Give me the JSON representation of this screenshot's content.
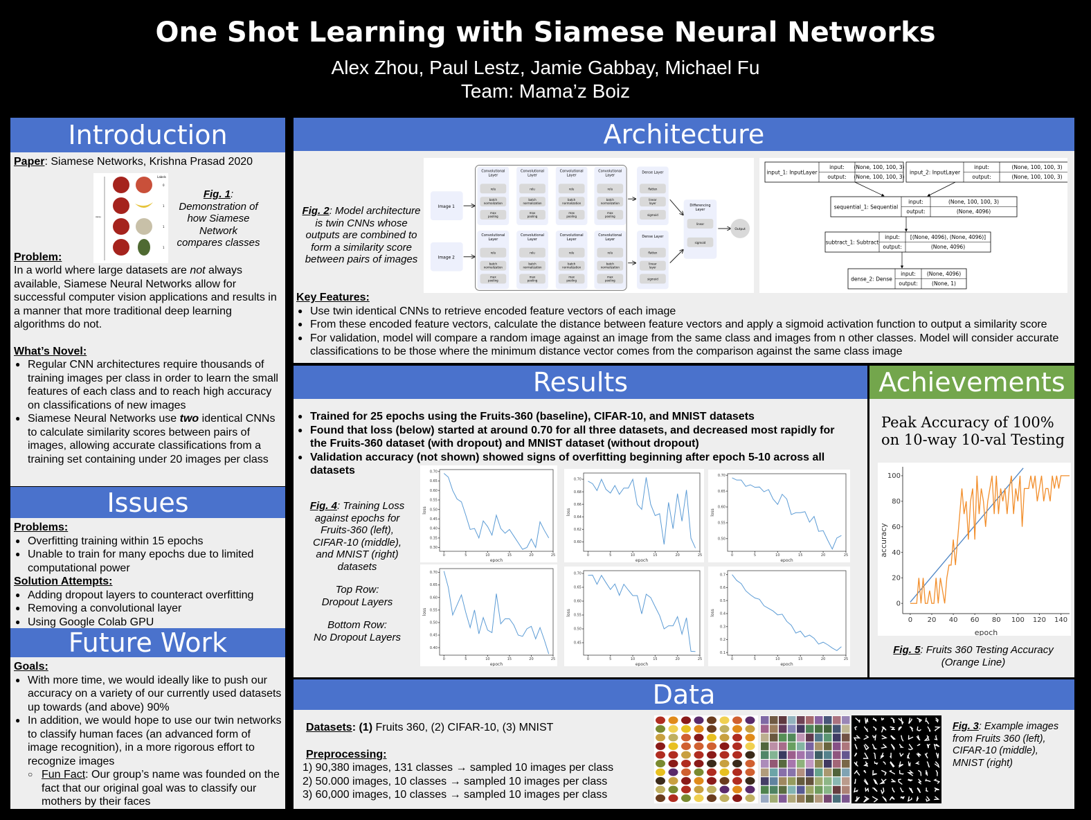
{
  "header": {
    "title": "One Shot Learning with Siamese Neural Networks",
    "authors": "Alex Zhou, Paul Lestz, Jamie Gabbay, Michael Fu",
    "team": "Team: Mama’z Boiz"
  },
  "intro": {
    "heading": "Introduction",
    "paper_label": "Paper",
    "paper_text": ": Siamese Networks, Krishna Prasad 2020",
    "fig1": {
      "label": "Fig. 1",
      "text": ": Demonstration of how Siamese Network compares classes",
      "labels_title": "Labels",
      "pair_labels": [
        "0",
        "1",
        "1",
        "1"
      ],
      "axis_label": "Away"
    },
    "problem_label": "Problem:",
    "problem_pre": "In a world where large datasets are ",
    "problem_em": "not",
    "problem_post": " always available, Siamese Neural Networks allow for successful computer vision applications and results in a manner that more traditional deep learning algorithms do not.",
    "novel_label": "What’s Novel:",
    "novel_1": "Regular CNN architectures require thousands of training images per class in order to learn the small features of each class and to reach high accuracy on classifications of new images",
    "novel_2_pre": "Siamese Neural Networks use ",
    "novel_2_em": "two",
    "novel_2_post": " identical CNNs to calculate similarity scores between pairs of images, allowing accurate classifications from a training set containing under 20 images per class"
  },
  "issues": {
    "heading": "Issues",
    "problems_label": "Problems:",
    "problems": [
      "Overfitting training within 15 epochs",
      "Unable to train for many epochs due to limited computational  power"
    ],
    "solutions_label": "Solution Attempts:",
    "solutions": [
      "Adding dropout layers to counteract overfitting",
      "Removing a convolutional layer",
      "Using Google Colab GPU"
    ]
  },
  "future": {
    "heading": "Future Work",
    "goals_label": "Goals:",
    "goals": [
      "With more time, we would ideally like to push our accuracy on a variety of our currently used datasets up towards (and above) 90%",
      "In addition, we would hope to use our twin networks to classify human faces (an advanced form of image recognition), in a more rigorous effort to recognize images"
    ],
    "fun_label": "Fun Fact",
    "fun_text": ": Our group’s name was founded on the fact that our original goal was to classify our mothers by their faces"
  },
  "architecture": {
    "heading": "Architecture",
    "fig2_label": "Fig. 2",
    "fig2_text": ": Model architecture is twin CNNs whose outputs are combined to form a similarity score between pairs of images",
    "diagram": {
      "images": [
        "Image 1",
        "Image 2"
      ],
      "conv_title": "Convolutional Layer",
      "conv_ops": [
        "relu",
        "batch normalization",
        "max pooling"
      ],
      "dense_title": "Dense Layer",
      "dense_ops": [
        "flatten",
        "linear layer",
        "sigmoid"
      ],
      "diff_title": "Differencing Layer",
      "diff_ops": [
        "linear",
        "sigmoid"
      ],
      "output": "Output"
    },
    "keras": [
      {
        "name": "input_1: InputLayer",
        "input": "(None, 100, 100, 3)",
        "output": "(None, 100, 100, 3)"
      },
      {
        "name": "input_2: InputLayer",
        "input": "(None, 100, 100, 3)",
        "output": "(None, 100, 100, 3)"
      },
      {
        "name": "sequential_1: Sequential",
        "input": "(None, 100, 100, 3)",
        "output": "(None, 4096)"
      },
      {
        "name": "subtract_1: Subtract",
        "input": "[(None, 4096), (None, 4096)]",
        "output": "(None, 4096)"
      },
      {
        "name": "dense_2: Dense",
        "input": "(None, 4096)",
        "output": "(None, 1)"
      }
    ],
    "keras_input_label": "input:",
    "keras_output_label": "output:",
    "features_label": "Key Features:",
    "features": [
      "Use twin identical CNNs to retrieve encoded feature vectors of each image",
      "From these encoded feature vectors, calculate the distance between feature vectors and apply a sigmoid activation function to output a similarity score",
      "For validation, model will compare a random image against an image from the same class and images from n other classes. Model will consider accurate classifications to be those where the minimum distance vector comes from the comparison against the same class image"
    ]
  },
  "results": {
    "heading": "Results",
    "bullets": [
      "Trained for 25 epochs using the Fruits-360 (baseline), CIFAR-10, and MNIST datasets",
      "Found that loss (below) started at around 0.70 for all three datasets, and decreased most rapidly for the Fruits-360 dataset (with dropout) and MNIST dataset (without dropout)",
      "Validation accuracy (not shown) showed signs of overfitting beginning after epoch 5-10 across all datasets"
    ],
    "fig4_label": "Fig. 4",
    "fig4_text": ": Training Loss against epochs for Fruits-360 (left), CIFAR-10 (middle), and MNIST (right) datasets",
    "top_row": "Top Row:",
    "top_row_desc": "Dropout Layers",
    "bottom_row": "Bottom Row:",
    "bottom_row_desc": "No Dropout Layers"
  },
  "achievements": {
    "heading": "Achievements",
    "text": "Peak Accuracy of 100% on 10-way 10-val Testing",
    "fig5_label": "Fig. 5",
    "fig5_text": ":  Fruits 360 Testing Accuracy (Orange Line)"
  },
  "data": {
    "heading": "Data",
    "datasets_label": "Datasets",
    "datasets_b": ": (1)",
    "datasets_text": " Fruits 360, (2) CIFAR-10, (3) MNIST",
    "pre_label": "Preprocessing:",
    "pre_items": [
      "1)  90,380 images, 131 classes → sampled 10 images per class",
      "2)  50.000 images, 10 classes → sampled 10 images per class",
      "3)  60,000  images, 10 classes → sampled 10 images per class"
    ],
    "fig3_label": "Fig. 3",
    "fig3_text": ": Example images from Fruits 360 (left), CIFAR-10 (middle), MNIST (right)"
  },
  "colors": {
    "header_blue": "#4a72cc",
    "achievements_green": "#73a64c",
    "panel_bg": "#eeeeee",
    "loss_line": "#5b9bd5",
    "accuracy_orange": "#f28e2b",
    "trend_blue": "#4c84c4"
  },
  "chart_data": [
    {
      "type": "line",
      "dataset": "Fruits-360",
      "row": "dropout",
      "xlabel": "epoch",
      "ylabel": "loss",
      "xticks": [
        0,
        5,
        10,
        15,
        20,
        25
      ],
      "yticks": [
        0.3,
        0.35,
        0.4,
        0.45,
        0.5,
        0.55,
        0.6,
        0.65,
        0.7
      ],
      "ylim": [
        0.28,
        0.71
      ],
      "xlim": [
        -1,
        25
      ],
      "x": [
        0,
        1,
        2,
        3,
        4,
        5,
        6,
        7,
        8,
        9,
        10,
        11,
        12,
        13,
        14,
        15,
        16,
        17,
        18,
        19,
        20,
        21,
        22,
        23,
        24
      ],
      "values": [
        0.69,
        0.67,
        0.6,
        0.555,
        0.54,
        0.47,
        0.395,
        0.4,
        0.35,
        0.44,
        0.41,
        0.365,
        0.47,
        0.4,
        0.375,
        0.395,
        0.36,
        0.325,
        0.29,
        0.3,
        0.345,
        0.3,
        0.435,
        0.39,
        0.35
      ]
    },
    {
      "type": "line",
      "dataset": "CIFAR-10",
      "row": "dropout",
      "xlabel": "epoch",
      "ylabel": "loss",
      "xticks": [
        0,
        5,
        10,
        15,
        20,
        25
      ],
      "yticks": [
        0.6,
        0.62,
        0.64,
        0.66,
        0.68,
        0.7
      ],
      "ylim": [
        0.585,
        0.71
      ],
      "xlim": [
        -1,
        25
      ],
      "x": [
        0,
        1,
        2,
        3,
        4,
        5,
        6,
        7,
        8,
        9,
        10,
        11,
        12,
        13,
        14,
        15,
        16,
        17,
        18,
        19,
        20,
        21,
        22,
        23,
        24
      ],
      "values": [
        0.697,
        0.693,
        0.682,
        0.7,
        0.684,
        0.678,
        0.69,
        0.676,
        0.686,
        0.686,
        0.7,
        0.66,
        0.652,
        0.703,
        0.66,
        0.642,
        0.645,
        0.596,
        0.663,
        0.621,
        0.677,
        0.633,
        0.683,
        0.606,
        0.59
      ]
    },
    {
      "type": "line",
      "dataset": "MNIST",
      "row": "dropout",
      "xlabel": "epoch",
      "ylabel": "loss",
      "xticks": [
        0,
        5,
        10,
        15,
        20,
        25
      ],
      "yticks": [
        0.5,
        0.55,
        0.6,
        0.65,
        0.7
      ],
      "ylim": [
        0.46,
        0.705
      ],
      "xlim": [
        -1,
        25
      ],
      "x": [
        0,
        1,
        2,
        3,
        4,
        5,
        6,
        7,
        8,
        9,
        10,
        11,
        12,
        13,
        14,
        15,
        16,
        17,
        18,
        19,
        20,
        21,
        22,
        23,
        24
      ],
      "values": [
        0.692,
        0.685,
        0.685,
        0.665,
        0.67,
        0.662,
        0.663,
        0.648,
        0.655,
        0.625,
        0.608,
        0.64,
        0.625,
        0.576,
        0.582,
        0.582,
        0.585,
        0.552,
        0.57,
        0.523,
        0.525,
        0.495,
        0.467,
        0.502,
        0.51
      ]
    },
    {
      "type": "line",
      "dataset": "Fruits-360",
      "row": "no dropout",
      "xlabel": "epoch",
      "ylabel": "loss",
      "xticks": [
        0,
        5,
        10,
        15,
        20,
        25
      ],
      "yticks": [
        0.4,
        0.45,
        0.5,
        0.55,
        0.6,
        0.65,
        0.7
      ],
      "ylim": [
        0.37,
        0.715
      ],
      "xlim": [
        -1,
        25
      ],
      "x": [
        0,
        1,
        2,
        3,
        4,
        5,
        6,
        7,
        8,
        9,
        10,
        11,
        12,
        13,
        14,
        15,
        16,
        17,
        18,
        19,
        20,
        21,
        22,
        23,
        24
      ],
      "values": [
        0.705,
        0.64,
        0.53,
        0.57,
        0.61,
        0.54,
        0.48,
        0.55,
        0.455,
        0.52,
        0.47,
        0.46,
        0.615,
        0.495,
        0.515,
        0.515,
        0.49,
        0.45,
        0.445,
        0.475,
        0.485,
        0.435,
        0.48,
        0.43,
        0.375
      ]
    },
    {
      "type": "line",
      "dataset": "CIFAR-10",
      "row": "no dropout",
      "xlabel": "epoch",
      "ylabel": "loss",
      "xticks": [
        0,
        5,
        10,
        15,
        20,
        25
      ],
      "yticks": [
        0.45,
        0.5,
        0.55,
        0.6,
        0.65,
        0.7
      ],
      "ylim": [
        0.405,
        0.71
      ],
      "xlim": [
        -1,
        25
      ],
      "x": [
        0,
        1,
        2,
        3,
        4,
        5,
        6,
        7,
        8,
        9,
        10,
        11,
        12,
        13,
        14,
        15,
        16,
        17,
        18,
        19,
        20,
        21,
        22,
        23,
        24
      ],
      "values": [
        0.693,
        0.694,
        0.661,
        0.693,
        0.667,
        0.642,
        0.662,
        0.621,
        0.661,
        0.64,
        0.62,
        0.62,
        0.554,
        0.625,
        0.613,
        0.58,
        0.548,
        0.5,
        0.511,
        0.511,
        0.544,
        0.481,
        0.54,
        0.419,
        0.418
      ]
    },
    {
      "type": "line",
      "dataset": "MNIST",
      "row": "no dropout",
      "xlabel": "epoch",
      "ylabel": "loss",
      "xticks": [
        0,
        5,
        10,
        15,
        20,
        25
      ],
      "yticks": [
        0.1,
        0.2,
        0.3,
        0.4,
        0.5,
        0.6,
        0.7
      ],
      "ylim": [
        0.08,
        0.73
      ],
      "xlim": [
        -1,
        25
      ],
      "x": [
        0,
        1,
        2,
        3,
        4,
        5,
        6,
        7,
        8,
        9,
        10,
        11,
        12,
        13,
        14,
        15,
        16,
        17,
        18,
        19,
        20,
        21,
        22,
        23,
        24
      ],
      "values": [
        0.7,
        0.655,
        0.63,
        0.575,
        0.545,
        0.52,
        0.51,
        0.46,
        0.44,
        0.42,
        0.39,
        0.395,
        0.34,
        0.31,
        0.25,
        0.265,
        0.22,
        0.235,
        0.21,
        0.165,
        0.18,
        0.16,
        0.135,
        0.115,
        0.145
      ]
    },
    {
      "type": "line",
      "title": "Fruits 360 Testing Accuracy",
      "xlabel": "epoch",
      "ylabel": "accuracy",
      "xticks": [
        0,
        20,
        40,
        60,
        80,
        100,
        120,
        140
      ],
      "yticks": [
        0,
        20,
        40,
        60,
        80,
        100
      ],
      "xlim": [
        -7,
        148
      ],
      "ylim": [
        -8,
        107
      ],
      "series": [
        {
          "color": "#4c84c4",
          "x": [
            0,
            105
          ],
          "values": [
            1,
            106
          ]
        },
        {
          "color": "#f28e2b",
          "x": [
            0,
            2,
            4,
            6,
            8,
            10,
            12,
            14,
            16,
            18,
            20,
            22,
            24,
            26,
            28,
            30,
            32,
            34,
            36,
            38,
            40,
            42,
            44,
            46,
            48,
            50,
            52,
            54,
            56,
            58,
            60,
            62,
            64,
            66,
            68,
            70,
            72,
            74,
            76,
            78,
            80,
            82,
            84,
            86,
            88,
            90,
            92,
            94,
            96,
            98,
            100,
            102,
            104,
            106,
            108,
            110,
            112,
            114,
            116,
            118,
            120,
            122,
            124,
            126,
            128,
            130,
            132,
            134,
            136,
            138,
            140,
            142,
            144,
            146,
            148
          ],
          "values": [
            0,
            0,
            0,
            0,
            20,
            0,
            20,
            0,
            0,
            10,
            0,
            0,
            20,
            0,
            20,
            10,
            0,
            20,
            30,
            30,
            50,
            30,
            50,
            70,
            90,
            70,
            80,
            50,
            80,
            90,
            50,
            100,
            70,
            90,
            80,
            60,
            80,
            90,
            100,
            70,
            100,
            70,
            90,
            80,
            90,
            70,
            90,
            100,
            70,
            90,
            80,
            100,
            60,
            90,
            90,
            90,
            100,
            90,
            100,
            80,
            90,
            100,
            80,
            90,
            90,
            80,
            100,
            90,
            100,
            90,
            100,
            100,
            100,
            100,
            100
          ]
        }
      ]
    }
  ]
}
